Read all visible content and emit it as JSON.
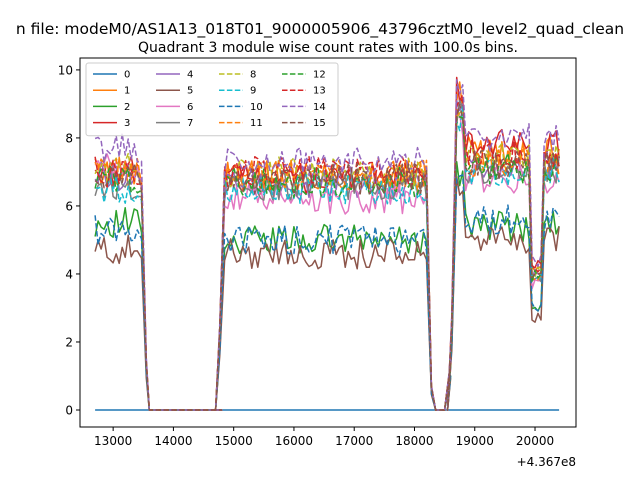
{
  "suptitle": "n file: modeM0/AS1A13_018T01_9000005906_43796cztM0_level2_quad_clean",
  "chart_data": {
    "type": "line",
    "title": "Quadrant 3 module wise count rates with 100.0s bins.",
    "xlabel": "",
    "ylabel": "",
    "offset_text": "+4.367e8",
    "xlim": [
      12450,
      20680
    ],
    "ylim": [
      -0.5,
      10.35
    ],
    "xticks": [
      13000,
      14000,
      15000,
      16000,
      17000,
      18000,
      19000,
      20000
    ],
    "yticks": [
      0,
      2,
      4,
      6,
      8,
      10
    ],
    "legend_loc": "upper-left",
    "legend_cols": 4,
    "grid": false,
    "segments": [
      {
        "x_start": 12700,
        "x_end": 13400,
        "step": 50
      },
      {
        "x_start": 14850,
        "x_end": 18200,
        "step": 50
      },
      {
        "x_start": 18700,
        "x_end": 20400,
        "step": 50
      }
    ],
    "zeros_between": [
      13600,
      14600
    ],
    "series": [
      {
        "name": "0",
        "color": "#1f77b4",
        "dash": "solid",
        "level": [
          0,
          0,
          0
        ]
      },
      {
        "name": "1",
        "color": "#ff7f0e",
        "dash": "solid",
        "level": [
          7.0,
          6.9,
          7.6
        ]
      },
      {
        "name": "2",
        "color": "#2ca02c",
        "dash": "solid",
        "level": [
          5.5,
          5.0,
          5.4
        ]
      },
      {
        "name": "3",
        "color": "#d62728",
        "dash": "solid",
        "level": [
          7.0,
          6.8,
          7.8
        ]
      },
      {
        "name": "4",
        "color": "#9467bd",
        "dash": "solid",
        "level": [
          6.9,
          6.6,
          7.2
        ]
      },
      {
        "name": "5",
        "color": "#8c564b",
        "dash": "solid",
        "level": [
          4.7,
          4.6,
          5.0
        ]
      },
      {
        "name": "6",
        "color": "#e377c2",
        "dash": "solid",
        "level": [
          7.1,
          6.2,
          6.8
        ]
      },
      {
        "name": "7",
        "color": "#7f7f7f",
        "dash": "solid",
        "level": [
          6.6,
          6.6,
          7.1
        ]
      },
      {
        "name": "8",
        "color": "#bcbd22",
        "dash": "dashed",
        "level": [
          7.1,
          7.0,
          7.4
        ]
      },
      {
        "name": "9",
        "color": "#17becf",
        "dash": "dashed",
        "level": [
          6.5,
          6.5,
          7.0
        ]
      },
      {
        "name": "10",
        "color": "#1f77b4",
        "dash": "dashed",
        "level": [
          5.3,
          5.0,
          5.6
        ]
      },
      {
        "name": "11",
        "color": "#ff7f0e",
        "dash": "dashed",
        "level": [
          7.0,
          6.9,
          7.3
        ]
      },
      {
        "name": "12",
        "color": "#2ca02c",
        "dash": "dashed",
        "level": [
          6.8,
          6.7,
          7.1
        ]
      },
      {
        "name": "13",
        "color": "#d62728",
        "dash": "dashed",
        "level": [
          7.0,
          7.0,
          7.5
        ]
      },
      {
        "name": "14",
        "color": "#9467bd",
        "dash": "dashed",
        "level": [
          7.7,
          7.3,
          8.0
        ]
      },
      {
        "name": "15",
        "color": "#8c564b",
        "dash": "dashed",
        "level": [
          6.8,
          6.8,
          7.2
        ]
      }
    ]
  }
}
